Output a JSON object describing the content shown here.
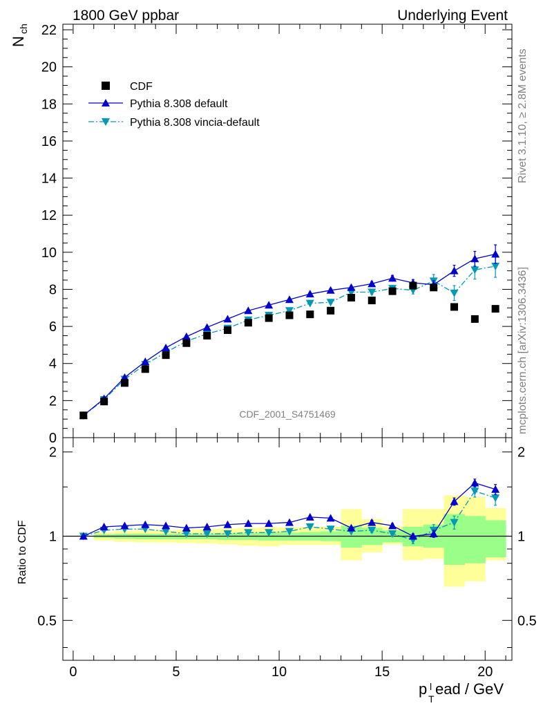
{
  "header": {
    "left_title": "1800 GeV ppbar",
    "right_title": "Underlying Event",
    "watermark": "CDF_2001_S4751469",
    "side_rivet": "Rivet 3.1.10, ≥ 2.8M events",
    "side_mcplots": "mcplots.cern.ch [arXiv:1306.3436]"
  },
  "chart_data": [
    {
      "type": "scatter",
      "ylabel_main": "N",
      "ylabel_sub": "ch",
      "ylim": [
        0,
        22.3
      ],
      "xlim": [
        -0.5,
        21.3
      ],
      "yticks": [
        0,
        2,
        4,
        6,
        8,
        10,
        12,
        14,
        16,
        18,
        20,
        22
      ],
      "legend_position": "top-left",
      "x": [
        0.5,
        1.5,
        2.5,
        3.5,
        4.5,
        5.5,
        6.5,
        7.5,
        8.5,
        9.5,
        10.5,
        11.5,
        12.5,
        13.5,
        14.5,
        15.5,
        16.5,
        17.5,
        18.5,
        19.5,
        20.5
      ],
      "series": [
        {
          "name": "CDF",
          "color": "#000000",
          "marker": "square",
          "values": [
            1.2,
            1.95,
            2.95,
            3.7,
            4.45,
            5.1,
            5.5,
            5.8,
            6.2,
            6.45,
            6.6,
            6.65,
            6.85,
            7.55,
            7.4,
            7.9,
            8.2,
            8.1,
            7.05,
            6.4,
            6.95
          ]
        },
        {
          "name": "Pythia 8.308 default",
          "color": "#0000cc",
          "marker": "triangle-up",
          "values": [
            1.2,
            2.1,
            3.25,
            4.1,
            4.85,
            5.45,
            5.95,
            6.4,
            6.85,
            7.15,
            7.45,
            7.75,
            7.95,
            8.1,
            8.3,
            8.6,
            8.35,
            8.25,
            9.0,
            9.65,
            9.9
          ],
          "errors": [
            0.02,
            0.03,
            0.04,
            0.05,
            0.05,
            0.05,
            0.06,
            0.06,
            0.07,
            0.07,
            0.08,
            0.08,
            0.09,
            0.1,
            0.12,
            0.15,
            0.18,
            0.22,
            0.3,
            0.4,
            0.5
          ]
        },
        {
          "name": "Pythia 8.308 vincia-default",
          "color": "#0099b8",
          "marker": "triangle-down",
          "values": [
            1.2,
            2.05,
            3.15,
            3.95,
            4.6,
            5.2,
            5.6,
            5.9,
            6.35,
            6.6,
            6.85,
            7.25,
            7.3,
            7.85,
            7.85,
            8.05,
            7.95,
            8.45,
            7.8,
            9.05,
            9.25
          ],
          "errors": [
            0.02,
            0.03,
            0.04,
            0.05,
            0.05,
            0.05,
            0.06,
            0.06,
            0.07,
            0.07,
            0.08,
            0.08,
            0.09,
            0.1,
            0.12,
            0.15,
            0.2,
            0.35,
            0.4,
            0.5,
            0.6
          ]
        }
      ]
    },
    {
      "type": "scatter",
      "ylabel": "Ratio to CDF",
      "xlabel_main": "p",
      "xlabel_sub": "T",
      "xlabel_sup": "l",
      "xlabel_rest": "ead / GeV",
      "ylim": [
        0.36,
        2.25
      ],
      "ylog": true,
      "ytick_labels": [
        "0.5",
        "1",
        "2"
      ],
      "yticks": [
        0.5,
        1,
        2
      ],
      "xticks": [
        0,
        5,
        10,
        15,
        20
      ],
      "reference": 1,
      "bands": {
        "x_edges": [
          1,
          2,
          3,
          4,
          5,
          6,
          7,
          8,
          9,
          10,
          11,
          12,
          13,
          14,
          15,
          16,
          17,
          18,
          19,
          20,
          21
        ],
        "green": [
          [
            0.985,
            1.015
          ],
          [
            0.98,
            1.02
          ],
          [
            0.975,
            1.02
          ],
          [
            0.975,
            1.02
          ],
          [
            0.975,
            1.02
          ],
          [
            0.975,
            1.02
          ],
          [
            0.97,
            1.025
          ],
          [
            0.97,
            1.025
          ],
          [
            0.965,
            1.03
          ],
          [
            0.965,
            1.03
          ],
          [
            0.965,
            1.035
          ],
          [
            0.96,
            1.04
          ],
          [
            0.91,
            1.09
          ],
          [
            0.93,
            1.07
          ],
          [
            0.95,
            1.05
          ],
          [
            0.92,
            1.08
          ],
          [
            0.91,
            1.1
          ],
          [
            0.79,
            1.2
          ],
          [
            0.8,
            1.18
          ],
          [
            0.84,
            1.14
          ]
        ],
        "yellow": [
          [
            0.965,
            1.035
          ],
          [
            0.955,
            1.045
          ],
          [
            0.95,
            1.05
          ],
          [
            0.95,
            1.05
          ],
          [
            0.945,
            1.055
          ],
          [
            0.94,
            1.06
          ],
          [
            0.935,
            1.065
          ],
          [
            0.925,
            1.07
          ],
          [
            0.92,
            1.075
          ],
          [
            0.93,
            1.075
          ],
          [
            0.93,
            1.08
          ],
          [
            0.93,
            1.08
          ],
          [
            0.82,
            1.25
          ],
          [
            0.875,
            1.15
          ],
          [
            0.935,
            1.085
          ],
          [
            0.82,
            1.25
          ],
          [
            0.83,
            1.25
          ],
          [
            0.66,
            1.4
          ],
          [
            0.69,
            1.38
          ],
          [
            0.82,
            1.26
          ]
        ]
      },
      "x": [
        0.5,
        1.5,
        2.5,
        3.5,
        4.5,
        5.5,
        6.5,
        7.5,
        8.5,
        9.5,
        10.5,
        11.5,
        12.5,
        13.5,
        14.5,
        15.5,
        16.5,
        17.5,
        18.5,
        19.5,
        20.5
      ],
      "series": [
        {
          "name": "Pythia 8.308 default",
          "color": "#0000cc",
          "marker": "triangle-up",
          "values": [
            1.0,
            1.08,
            1.09,
            1.1,
            1.09,
            1.07,
            1.08,
            1.1,
            1.11,
            1.11,
            1.12,
            1.17,
            1.16,
            1.07,
            1.12,
            1.09,
            1.0,
            1.02,
            1.33,
            1.55,
            1.47
          ],
          "errors": [
            0.01,
            0.01,
            0.01,
            0.01,
            0.01,
            0.01,
            0.01,
            0.01,
            0.01,
            0.01,
            0.01,
            0.01,
            0.01,
            0.01,
            0.02,
            0.02,
            0.02,
            0.03,
            0.04,
            0.05,
            0.06
          ]
        },
        {
          "name": "Pythia 8.308 vincia-default",
          "color": "#0099b8",
          "marker": "triangle-down",
          "values": [
            1.0,
            1.05,
            1.06,
            1.06,
            1.04,
            1.02,
            1.02,
            1.02,
            1.03,
            1.03,
            1.04,
            1.08,
            1.06,
            1.04,
            1.05,
            1.02,
            0.97,
            1.05,
            1.12,
            1.45,
            1.37
          ],
          "errors": [
            0.01,
            0.01,
            0.01,
            0.01,
            0.01,
            0.01,
            0.01,
            0.01,
            0.01,
            0.01,
            0.01,
            0.01,
            0.01,
            0.01,
            0.02,
            0.02,
            0.03,
            0.05,
            0.06,
            0.07,
            0.08
          ]
        }
      ]
    }
  ]
}
